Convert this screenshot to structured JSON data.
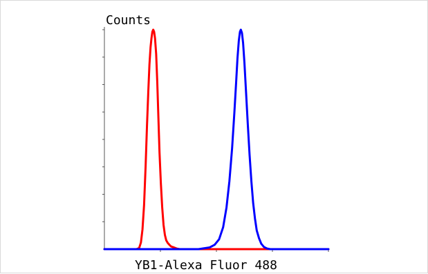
{
  "chart_data": {
    "type": "line",
    "title": "",
    "ylabel": "Counts",
    "xlabel": "YB1-Alexa Fluor 488",
    "xlim": [
      0,
      1
    ],
    "ylim": [
      0,
      1
    ],
    "grid": false,
    "x_minor_ticks": 4,
    "y_minor_ticks": 8,
    "series": [
      {
        "color": "#ff0000",
        "points": [
          [
            0.0,
            0.0
          ],
          [
            0.143,
            0.0
          ],
          [
            0.155,
            0.005
          ],
          [
            0.163,
            0.03
          ],
          [
            0.17,
            0.09
          ],
          [
            0.177,
            0.2
          ],
          [
            0.184,
            0.38
          ],
          [
            0.19,
            0.56
          ],
          [
            0.196,
            0.72
          ],
          [
            0.201,
            0.84
          ],
          [
            0.206,
            0.92
          ],
          [
            0.21,
            0.96
          ],
          [
            0.214,
            0.99
          ],
          [
            0.218,
            1.0
          ],
          [
            0.222,
            0.99
          ],
          [
            0.226,
            0.96
          ],
          [
            0.231,
            0.89
          ],
          [
            0.236,
            0.76
          ],
          [
            0.241,
            0.6
          ],
          [
            0.246,
            0.44
          ],
          [
            0.252,
            0.3
          ],
          [
            0.258,
            0.19
          ],
          [
            0.264,
            0.11
          ],
          [
            0.27,
            0.065
          ],
          [
            0.276,
            0.04
          ],
          [
            0.283,
            0.028
          ],
          [
            0.29,
            0.02
          ],
          [
            0.298,
            0.012
          ],
          [
            0.31,
            0.008
          ],
          [
            0.322,
            0.003
          ],
          [
            0.336,
            0.0
          ],
          [
            0.45,
            0.0
          ],
          [
            0.62,
            0.0
          ],
          [
            0.8,
            0.0
          ],
          [
            1.0,
            0.0
          ]
        ]
      },
      {
        "color": "#0000ff",
        "points": [
          [
            0.0,
            0.0
          ],
          [
            0.34,
            0.0
          ],
          [
            0.38,
            0.0
          ],
          [
            0.42,
            0.0
          ],
          [
            0.47,
            0.008
          ],
          [
            0.492,
            0.02
          ],
          [
            0.512,
            0.045
          ],
          [
            0.53,
            0.1
          ],
          [
            0.545,
            0.19
          ],
          [
            0.558,
            0.31
          ],
          [
            0.57,
            0.46
          ],
          [
            0.58,
            0.62
          ],
          [
            0.588,
            0.76
          ],
          [
            0.594,
            0.87
          ],
          [
            0.6,
            0.95
          ],
          [
            0.605,
            0.99
          ],
          [
            0.609,
            1.0
          ],
          [
            0.614,
            0.985
          ],
          [
            0.619,
            0.94
          ],
          [
            0.625,
            0.85
          ],
          [
            0.632,
            0.72
          ],
          [
            0.64,
            0.57
          ],
          [
            0.648,
            0.43
          ],
          [
            0.656,
            0.31
          ],
          [
            0.664,
            0.21
          ],
          [
            0.672,
            0.14
          ],
          [
            0.68,
            0.085
          ],
          [
            0.69,
            0.05
          ],
          [
            0.7,
            0.025
          ],
          [
            0.712,
            0.01
          ],
          [
            0.726,
            0.003
          ],
          [
            0.74,
            0.0
          ],
          [
            0.8,
            0.0
          ],
          [
            1.0,
            0.0
          ]
        ]
      }
    ]
  }
}
